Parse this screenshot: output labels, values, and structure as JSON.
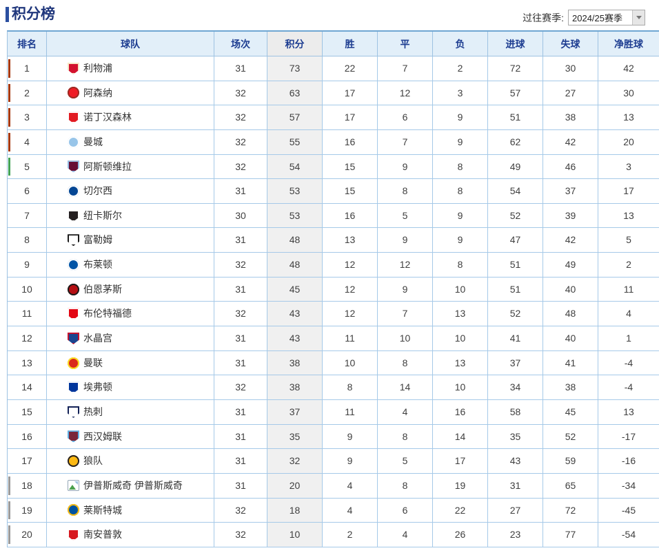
{
  "page": {
    "title": "积分榜",
    "season_label": "过往赛季:",
    "season_value": "2024/25赛季"
  },
  "table": {
    "headers": [
      "排名",
      "球队",
      "场次",
      "积分",
      "胜",
      "平",
      "负",
      "进球",
      "失球",
      "净胜球"
    ],
    "zone_colors": {
      "champions_league": "#a6390f",
      "europa_league": "#43a356",
      "relegation": "#9b9b9b"
    },
    "rows": [
      {
        "rank": 1,
        "team": "利物浦",
        "played": 31,
        "points": 73,
        "win": 22,
        "draw": 7,
        "loss": 2,
        "gf": 72,
        "ga": 30,
        "gd": 42,
        "zone": "champions_league",
        "logo": {
          "shape": "shield",
          "c1": "#d3122e",
          "c2": "#f6e9c8"
        }
      },
      {
        "rank": 2,
        "team": "阿森纳",
        "played": 32,
        "points": 63,
        "win": 17,
        "draw": 12,
        "loss": 3,
        "gf": 57,
        "ga": 27,
        "gd": 30,
        "zone": "champions_league",
        "logo": {
          "shape": "circle",
          "c1": "#ef1b24",
          "c2": "#9c2b23"
        }
      },
      {
        "rank": 3,
        "team": "诺丁汉森林",
        "played": 32,
        "points": 57,
        "win": 17,
        "draw": 6,
        "loss": 9,
        "gf": 51,
        "ga": 38,
        "gd": 13,
        "zone": "champions_league",
        "logo": {
          "shape": "shield",
          "c1": "#e21b22",
          "c2": "#ffffff"
        }
      },
      {
        "rank": 4,
        "team": "曼城",
        "played": 32,
        "points": 55,
        "win": 16,
        "draw": 7,
        "loss": 9,
        "gf": 62,
        "ga": 42,
        "gd": 20,
        "zone": "champions_league",
        "logo": {
          "shape": "circle",
          "c1": "#98c5e9",
          "c2": "#ffffff"
        }
      },
      {
        "rank": 5,
        "team": "阿斯顿维拉",
        "played": 32,
        "points": 54,
        "win": 15,
        "draw": 9,
        "loss": 8,
        "gf": 49,
        "ga": 46,
        "gd": 3,
        "zone": "europa_league",
        "logo": {
          "shape": "shield",
          "c1": "#670e36",
          "c2": "#95bfe5"
        }
      },
      {
        "rank": 6,
        "team": "切尔西",
        "played": 31,
        "points": 53,
        "win": 15,
        "draw": 8,
        "loss": 8,
        "gf": 54,
        "ga": 37,
        "gd": 17,
        "zone": "none",
        "logo": {
          "shape": "circle",
          "c1": "#034694",
          "c2": "#ffffff"
        }
      },
      {
        "rank": 7,
        "team": "纽卡斯尔",
        "played": 30,
        "points": 53,
        "win": 16,
        "draw": 5,
        "loss": 9,
        "gf": 52,
        "ga": 39,
        "gd": 13,
        "zone": "none",
        "logo": {
          "shape": "shield",
          "c1": "#241f20",
          "c2": "#ffffff"
        }
      },
      {
        "rank": 8,
        "team": "富勒姆",
        "played": 31,
        "points": 48,
        "win": 13,
        "draw": 9,
        "loss": 9,
        "gf": 47,
        "ga": 42,
        "gd": 5,
        "zone": "none",
        "logo": {
          "shape": "shield",
          "c1": "#ffffff",
          "c2": "#1a1a1a"
        }
      },
      {
        "rank": 9,
        "team": "布莱顿",
        "played": 32,
        "points": 48,
        "win": 12,
        "draw": 12,
        "loss": 8,
        "gf": 51,
        "ga": 49,
        "gd": 2,
        "zone": "none",
        "logo": {
          "shape": "circle",
          "c1": "#0054a6",
          "c2": "#ffffff"
        }
      },
      {
        "rank": 10,
        "team": "伯恩茅斯",
        "played": 31,
        "points": 45,
        "win": 12,
        "draw": 9,
        "loss": 10,
        "gf": 51,
        "ga": 40,
        "gd": 11,
        "zone": "none",
        "logo": {
          "shape": "circle",
          "c1": "#b50e12",
          "c2": "#1a1a1a"
        }
      },
      {
        "rank": 11,
        "team": "布伦特福德",
        "played": 32,
        "points": 43,
        "win": 12,
        "draw": 7,
        "loss": 13,
        "gf": 52,
        "ga": 48,
        "gd": 4,
        "zone": "none",
        "logo": {
          "shape": "shield",
          "c1": "#e30613",
          "c2": "#ffffff"
        }
      },
      {
        "rank": 12,
        "team": "水晶宫",
        "played": 31,
        "points": 43,
        "win": 11,
        "draw": 10,
        "loss": 10,
        "gf": 41,
        "ga": 40,
        "gd": 1,
        "zone": "none",
        "logo": {
          "shape": "shield",
          "c1": "#1b458f",
          "c2": "#c4122e"
        }
      },
      {
        "rank": 13,
        "team": "曼联",
        "played": 31,
        "points": 38,
        "win": 10,
        "draw": 8,
        "loss": 13,
        "gf": 37,
        "ga": 41,
        "gd": -4,
        "zone": "none",
        "logo": {
          "shape": "circle",
          "c1": "#da291c",
          "c2": "#fbe122"
        }
      },
      {
        "rank": 14,
        "team": "埃弗顿",
        "played": 32,
        "points": 38,
        "win": 8,
        "draw": 14,
        "loss": 10,
        "gf": 34,
        "ga": 38,
        "gd": -4,
        "zone": "none",
        "logo": {
          "shape": "shield",
          "c1": "#00369c",
          "c2": "#ffffff"
        }
      },
      {
        "rank": 15,
        "team": "热刺",
        "played": 31,
        "points": 37,
        "win": 11,
        "draw": 4,
        "loss": 16,
        "gf": 58,
        "ga": 45,
        "gd": 13,
        "zone": "none",
        "logo": {
          "shape": "shield",
          "c1": "#ffffff",
          "c2": "#132257"
        }
      },
      {
        "rank": 16,
        "team": "西汉姆联",
        "played": 31,
        "points": 35,
        "win": 9,
        "draw": 8,
        "loss": 14,
        "gf": 35,
        "ga": 52,
        "gd": -17,
        "zone": "none",
        "logo": {
          "shape": "shield",
          "c1": "#7a263a",
          "c2": "#5fb2e5"
        }
      },
      {
        "rank": 17,
        "team": "狼队",
        "played": 31,
        "points": 32,
        "win": 9,
        "draw": 5,
        "loss": 17,
        "gf": 43,
        "ga": 59,
        "gd": -16,
        "zone": "none",
        "logo": {
          "shape": "circle",
          "c1": "#fdb913",
          "c2": "#231f20"
        }
      },
      {
        "rank": 18,
        "team": "伊普斯威奇 伊普斯威奇",
        "played": 31,
        "points": 20,
        "win": 4,
        "draw": 8,
        "loss": 19,
        "gf": 31,
        "ga": 65,
        "gd": -34,
        "zone": "relegation",
        "logo": {
          "broken": true
        }
      },
      {
        "rank": 19,
        "team": "莱斯特城",
        "played": 32,
        "points": 18,
        "win": 4,
        "draw": 6,
        "loss": 22,
        "gf": 27,
        "ga": 72,
        "gd": -45,
        "zone": "relegation",
        "logo": {
          "shape": "circle",
          "c1": "#0053a0",
          "c2": "#fdbe11"
        }
      },
      {
        "rank": 20,
        "team": "南安普敦",
        "played": 32,
        "points": 10,
        "win": 2,
        "draw": 4,
        "loss": 26,
        "gf": 23,
        "ga": 77,
        "gd": -54,
        "zone": "relegation",
        "logo": {
          "shape": "shield",
          "c1": "#d71920",
          "c2": "#ffffff"
        }
      }
    ]
  }
}
